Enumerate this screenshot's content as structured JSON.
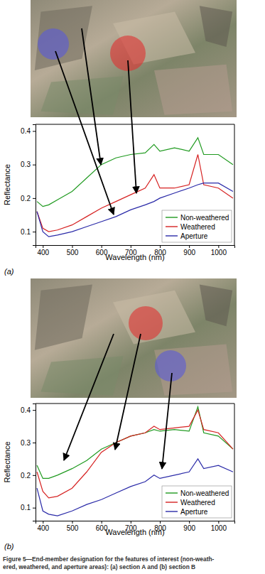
{
  "chart_data": [
    {
      "type": "line",
      "title": "(a)",
      "x_label": "Wavelength (nm)",
      "y_label": "Reflectance",
      "x": [
        380,
        400,
        420,
        450,
        500,
        550,
        600,
        650,
        700,
        750,
        780,
        800,
        850,
        900,
        930,
        950,
        1000,
        1050
      ],
      "series": [
        {
          "name": "Non-weathered",
          "color": "#1f9a1f",
          "values": [
            0.19,
            0.175,
            0.18,
            0.195,
            0.22,
            0.26,
            0.3,
            0.32,
            0.33,
            0.335,
            0.36,
            0.34,
            0.35,
            0.34,
            0.38,
            0.33,
            0.33,
            0.3
          ]
        },
        {
          "name": "Weathered",
          "color": "#d62222",
          "values": [
            0.16,
            0.11,
            0.1,
            0.105,
            0.12,
            0.145,
            0.17,
            0.19,
            0.21,
            0.23,
            0.27,
            0.23,
            0.23,
            0.24,
            0.33,
            0.24,
            0.23,
            0.2
          ]
        },
        {
          "name": "Aperture",
          "color": "#2a2aa8",
          "values": [
            0.16,
            0.1,
            0.085,
            0.09,
            0.1,
            0.115,
            0.13,
            0.145,
            0.165,
            0.18,
            0.19,
            0.2,
            0.215,
            0.23,
            0.24,
            0.245,
            0.245,
            0.22
          ]
        }
      ],
      "xlim": [
        375,
        1055
      ],
      "xticks": [
        400,
        500,
        600,
        700,
        800,
        900,
        1000
      ],
      "ylim": [
        0.06,
        0.42
      ],
      "yticks": [
        0.1,
        0.2,
        0.3,
        0.4
      ],
      "legend": "lower right",
      "grid": false
    },
    {
      "type": "line",
      "title": "(b)",
      "x_label": "Wavelength (nm)",
      "y_label": "Reflectance",
      "x": [
        380,
        400,
        420,
        450,
        500,
        550,
        600,
        650,
        700,
        750,
        780,
        800,
        850,
        900,
        930,
        950,
        1000,
        1050
      ],
      "series": [
        {
          "name": "Non-weathered",
          "color": "#1f9a1f",
          "values": [
            0.23,
            0.19,
            0.19,
            0.2,
            0.22,
            0.245,
            0.28,
            0.3,
            0.32,
            0.33,
            0.34,
            0.335,
            0.34,
            0.335,
            0.41,
            0.33,
            0.32,
            0.28
          ]
        },
        {
          "name": "Weathered",
          "color": "#d62222",
          "values": [
            0.21,
            0.15,
            0.13,
            0.135,
            0.16,
            0.21,
            0.27,
            0.3,
            0.32,
            0.33,
            0.35,
            0.34,
            0.345,
            0.35,
            0.4,
            0.34,
            0.33,
            0.28
          ]
        },
        {
          "name": "Aperture",
          "color": "#2a2aa8",
          "values": [
            0.16,
            0.09,
            0.08,
            0.075,
            0.09,
            0.11,
            0.125,
            0.145,
            0.165,
            0.18,
            0.2,
            0.19,
            0.2,
            0.21,
            0.25,
            0.22,
            0.23,
            0.21
          ]
        }
      ],
      "xlim": [
        375,
        1055
      ],
      "xticks": [
        400,
        500,
        600,
        700,
        800,
        900,
        1000
      ],
      "ylim": [
        0.06,
        0.42
      ],
      "yticks": [
        0.1,
        0.2,
        0.3,
        0.4
      ],
      "legend": "lower right",
      "grid": false
    }
  ],
  "caption": [
    "Figure 5—End-member designation for the features of interest (non-weath-",
    "ered, weathered, and aperture areas): (a) section A and (b) section B"
  ]
}
